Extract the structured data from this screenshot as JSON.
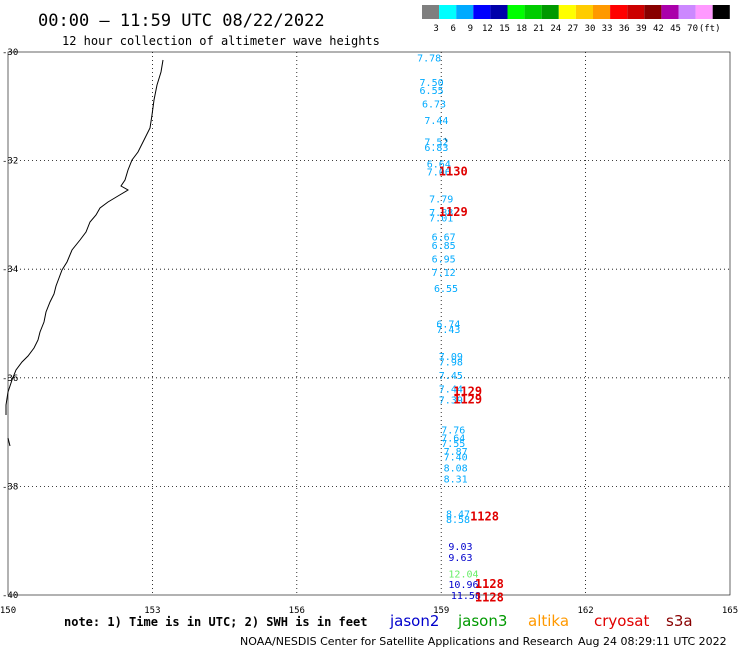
{
  "header": {
    "title": "00:00 – 11:59 UTC 08/22/2022",
    "subtitle": "12 hour collection of altimeter wave heights"
  },
  "color_scale": {
    "colors": [
      "#7f7f7f",
      "#00ffff",
      "#00aaff",
      "#0000ff",
      "#0000aa",
      "#00ff00",
      "#00cc00",
      "#009900",
      "#ffff00",
      "#ffcc00",
      "#ff9900",
      "#ff0000",
      "#cc0000",
      "#880000",
      "#aa00aa",
      "#cc88ff",
      "#ff99ff",
      "#000000"
    ],
    "labels": [
      "3",
      "6",
      "9",
      "12",
      "15",
      "18",
      "21",
      "24",
      "27",
      "30",
      "33",
      "36",
      "39",
      "42",
      "45",
      "70",
      "(ft)"
    ]
  },
  "map": {
    "lon_range": [
      150,
      165
    ],
    "lat_range": [
      -40,
      -30
    ],
    "lon_ticks": [
      "150",
      "153",
      "156",
      "159",
      "162",
      "165"
    ],
    "lat_ticks": [
      "-30",
      "-32",
      "-34",
      "-36",
      "-38",
      "-40"
    ],
    "coastline_icon": "australia-east-coast"
  },
  "observations": [
    {
      "lon": 158.5,
      "lat": -30.1,
      "text": "7.78",
      "color": "#00aaff"
    },
    {
      "lon": 158.55,
      "lat": -30.55,
      "text": "7.50",
      "color": "#00aaff"
    },
    {
      "lon": 158.55,
      "lat": -30.7,
      "text": "6.55",
      "color": "#00aaff"
    },
    {
      "lon": 158.6,
      "lat": -30.95,
      "text": "6.73",
      "color": "#00aaff"
    },
    {
      "lon": 158.65,
      "lat": -31.25,
      "text": "7.44",
      "color": "#00aaff"
    },
    {
      "lon": 158.65,
      "lat": -31.65,
      "text": "7.52",
      "color": "#00aaff"
    },
    {
      "lon": 158.65,
      "lat": -31.75,
      "text": "6.83",
      "color": "#00aaff"
    },
    {
      "lon": 158.7,
      "lat": -32.05,
      "text": "6.64",
      "color": "#00aaff"
    },
    {
      "lon": 158.7,
      "lat": -32.2,
      "text": "7.06",
      "color": "#00aaff"
    },
    {
      "lon": 158.75,
      "lat": -32.7,
      "text": "7.79",
      "color": "#00aaff"
    },
    {
      "lon": 158.75,
      "lat": -32.95,
      "text": "7.88",
      "color": "#00aaff"
    },
    {
      "lon": 158.75,
      "lat": -33.05,
      "text": "7.01",
      "color": "#00aaff"
    },
    {
      "lon": 158.8,
      "lat": -33.4,
      "text": "6.67",
      "color": "#00aaff"
    },
    {
      "lon": 158.8,
      "lat": -33.55,
      "text": "6.85",
      "color": "#00aaff"
    },
    {
      "lon": 158.8,
      "lat": -33.8,
      "text": "6.95",
      "color": "#00aaff"
    },
    {
      "lon": 158.8,
      "lat": -34.05,
      "text": "7.12",
      "color": "#00aaff"
    },
    {
      "lon": 158.85,
      "lat": -34.35,
      "text": "6.55",
      "color": "#00aaff"
    },
    {
      "lon": 158.9,
      "lat": -35.0,
      "text": "6.74",
      "color": "#00aaff"
    },
    {
      "lon": 158.9,
      "lat": -35.1,
      "text": "7.43",
      "color": "#00aaff"
    },
    {
      "lon": 158.95,
      "lat": -35.6,
      "text": "7.09",
      "color": "#00aaff"
    },
    {
      "lon": 158.95,
      "lat": -35.7,
      "text": "7.98",
      "color": "#00aaff"
    },
    {
      "lon": 158.95,
      "lat": -35.95,
      "text": "7.45",
      "color": "#00aaff"
    },
    {
      "lon": 158.95,
      "lat": -36.2,
      "text": "7.44",
      "color": "#00aaff"
    },
    {
      "lon": 158.95,
      "lat": -36.4,
      "text": "7.39",
      "color": "#00aaff"
    },
    {
      "lon": 159.0,
      "lat": -36.95,
      "text": "7.76",
      "color": "#00aaff"
    },
    {
      "lon": 159.0,
      "lat": -37.1,
      "text": "7.64",
      "color": "#00aaff"
    },
    {
      "lon": 159.0,
      "lat": -37.2,
      "text": "7.55",
      "color": "#00aaff"
    },
    {
      "lon": 159.05,
      "lat": -37.35,
      "text": "7.87",
      "color": "#00aaff"
    },
    {
      "lon": 159.05,
      "lat": -37.45,
      "text": "7.40",
      "color": "#00aaff"
    },
    {
      "lon": 159.05,
      "lat": -37.65,
      "text": "8.08",
      "color": "#00aaff"
    },
    {
      "lon": 159.05,
      "lat": -37.85,
      "text": "8.31",
      "color": "#00aaff"
    },
    {
      "lon": 159.1,
      "lat": -38.5,
      "text": "8.47",
      "color": "#00aaff"
    },
    {
      "lon": 159.1,
      "lat": -38.6,
      "text": "8.58",
      "color": "#00aaff"
    },
    {
      "lon": 159.15,
      "lat": -39.1,
      "text": "9.03",
      "color": "#0000cc"
    },
    {
      "lon": 159.15,
      "lat": -39.3,
      "text": "9.63",
      "color": "#0000cc"
    },
    {
      "lon": 159.15,
      "lat": -39.6,
      "text": "12.04",
      "color": "#66ee66"
    },
    {
      "lon": 159.15,
      "lat": -39.8,
      "text": "10.96",
      "color": "#0000cc"
    },
    {
      "lon": 159.2,
      "lat": -40.0,
      "text": "11.58",
      "color": "#0000cc"
    }
  ],
  "time_labels": [
    {
      "lon": 158.95,
      "lat": -32.2,
      "text": "1130"
    },
    {
      "lon": 158.95,
      "lat": -32.95,
      "text": "1129"
    },
    {
      "lon": 159.25,
      "lat": -36.25,
      "text": "1129"
    },
    {
      "lon": 159.25,
      "lat": -36.4,
      "text": "1129"
    },
    {
      "lon": 159.6,
      "lat": -38.55,
      "text": "1128"
    },
    {
      "lon": 159.7,
      "lat": -39.8,
      "text": "1128"
    },
    {
      "lon": 159.7,
      "lat": -40.05,
      "text": "1128"
    }
  ],
  "legend": {
    "note": "note: 1) Time is in UTC; 2) SWH is in feet",
    "satellites": [
      {
        "name": "jason2",
        "color": "#0000cc"
      },
      {
        "name": "jason3",
        "color": "#009900"
      },
      {
        "name": "altika",
        "color": "#ff9900"
      },
      {
        "name": "cryosat",
        "color": "#e00000"
      },
      {
        "name": "s3a",
        "color": "#880000"
      }
    ]
  },
  "footer": {
    "agency": "NOAA/NESDIS Center for Satellite Applications and Research",
    "timestamp": "Aug 24 08:29:11 UTC 2022"
  }
}
